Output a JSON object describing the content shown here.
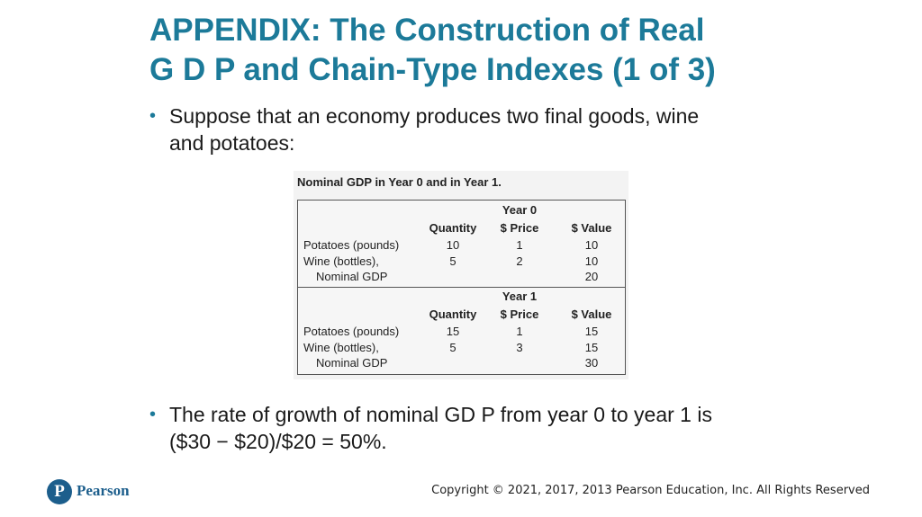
{
  "slide": {
    "title_line1": "APPENDIX: The Construction of Real",
    "title_line2": "G D P and Chain-Type Indexes (1 of 3)",
    "bullets": [
      {
        "line1": "Suppose that an economy produces two final goods, wine",
        "line2": "and potatoes:"
      },
      {
        "line1": "The rate of growth of nominal GD P from year 0 to year 1 is",
        "line2": "($30 − $20)/$20 = 50%."
      }
    ],
    "bullet_char": "•"
  },
  "figure": {
    "caption": "Nominal GDP in Year 0 and in Year 1.",
    "headers": {
      "quantity": "Quantity",
      "price": "$ Price",
      "value": "$ Value"
    },
    "blocks": [
      {
        "year": "Year 0",
        "rows": [
          {
            "label": "Potatoes (pounds)",
            "quantity": "10",
            "price": "1",
            "value": "10"
          },
          {
            "label": "Wine (bottles),",
            "quantity": "5",
            "price": "2",
            "value": "10"
          },
          {
            "label": "Nominal GDP",
            "quantity": "",
            "price": "",
            "value": "20"
          }
        ]
      },
      {
        "year": "Year 1",
        "rows": [
          {
            "label": "Potatoes (pounds)",
            "quantity": "15",
            "price": "1",
            "value": "15"
          },
          {
            "label": "Wine (bottles),",
            "quantity": "5",
            "price": "3",
            "value": "15"
          },
          {
            "label": "Nominal GDP",
            "quantity": "",
            "price": "",
            "value": "30"
          }
        ]
      }
    ]
  },
  "footer": {
    "logo_letter": "P",
    "logo_text": "Pearson",
    "copyright": "Copyright © 2021, 2017, 2013 Pearson Education, Inc. All Rights Reserved"
  },
  "colors": {
    "title": "#1c7a99",
    "brand": "#1c5e8c"
  }
}
